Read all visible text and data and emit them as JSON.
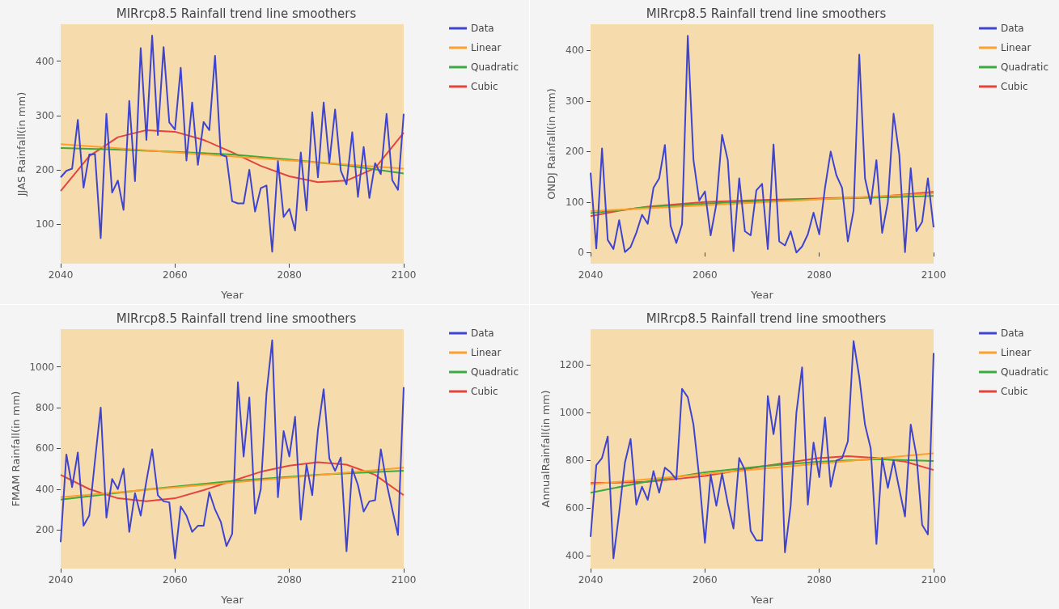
{
  "chart_data": [
    {
      "type": "line",
      "title": "MIRrcp8.5 Rainfall trend line smoothers",
      "xlabel": "Year",
      "ylabel": "JJAS Rainfall(in mm)",
      "legend": "right",
      "xlim": [
        2040,
        2100
      ],
      "ylim": [
        27,
        468
      ],
      "xticks": [
        2040,
        2060,
        2080,
        2100
      ],
      "yticks": [
        100,
        200,
        300,
        400
      ],
      "x": [
        2040,
        2041,
        2042,
        2043,
        2044,
        2045,
        2046,
        2047,
        2048,
        2049,
        2050,
        2051,
        2052,
        2053,
        2054,
        2055,
        2056,
        2057,
        2058,
        2059,
        2060,
        2061,
        2062,
        2063,
        2064,
        2065,
        2066,
        2067,
        2068,
        2069,
        2070,
        2071,
        2072,
        2073,
        2074,
        2075,
        2076,
        2077,
        2078,
        2079,
        2080,
        2081,
        2082,
        2083,
        2084,
        2085,
        2086,
        2087,
        2088,
        2089,
        2090,
        2091,
        2092,
        2093,
        2094,
        2095,
        2096,
        2097,
        2098,
        2099,
        2100
      ],
      "series": [
        {
          "name": "Data",
          "color": "#3f44d0",
          "values": [
            186,
            198,
            202,
            292,
            167,
            228,
            229,
            74,
            303,
            158,
            180,
            126,
            327,
            179,
            424,
            255,
            447,
            264,
            426,
            287,
            274,
            388,
            217,
            324,
            209,
            288,
            273,
            410,
            228,
            224,
            142,
            138,
            138,
            200,
            123,
            166,
            171,
            49,
            216,
            113,
            128,
            88,
            232,
            125,
            306,
            186,
            324,
            213,
            311,
            198,
            173,
            269,
            150,
            242,
            148,
            212,
            192,
            303,
            181,
            163,
            303
          ]
        },
        {
          "name": "Linear",
          "color": "#ff9f2a",
          "x": [
            2040,
            2100
          ],
          "values": [
            247,
            202
          ]
        },
        {
          "name": "Quadratic",
          "color": "#3caa3c",
          "x": [
            2040,
            2050,
            2060,
            2070,
            2080,
            2090,
            2100
          ],
          "values": [
            240,
            237,
            233,
            228,
            219,
            208,
            193
          ]
        },
        {
          "name": "Cubic",
          "color": "#e5443c",
          "x": [
            2040,
            2045,
            2050,
            2055,
            2060,
            2065,
            2070,
            2075,
            2080,
            2085,
            2090,
            2095,
            2100
          ],
          "values": [
            161,
            225,
            260,
            273,
            270,
            255,
            232,
            207,
            188,
            177,
            180,
            203,
            268
          ]
        }
      ]
    },
    {
      "type": "line",
      "title": "MIRrcp8.5 Rainfall trend line smoothers",
      "xlabel": "Year",
      "ylabel": "ONDJ Rainfall(in mm)",
      "legend": "right",
      "xlim": [
        2040,
        2100
      ],
      "ylim": [
        -22,
        452
      ],
      "xticks": [
        2040,
        2060,
        2080,
        2100
      ],
      "yticks": [
        0,
        100,
        200,
        300,
        400
      ],
      "x": [
        2040,
        2041,
        2042,
        2043,
        2044,
        2045,
        2046,
        2047,
        2048,
        2049,
        2050,
        2051,
        2052,
        2053,
        2054,
        2055,
        2056,
        2057,
        2058,
        2059,
        2060,
        2061,
        2062,
        2063,
        2064,
        2065,
        2066,
        2067,
        2068,
        2069,
        2070,
        2071,
        2072,
        2073,
        2074,
        2075,
        2076,
        2077,
        2078,
        2079,
        2080,
        2081,
        2082,
        2083,
        2084,
        2085,
        2086,
        2087,
        2088,
        2089,
        2090,
        2091,
        2092,
        2093,
        2094,
        2095,
        2096,
        2097,
        2098,
        2099,
        2100
      ],
      "series": [
        {
          "name": "Data",
          "color": "#3f44d0",
          "values": [
            158,
            8,
            206,
            25,
            7,
            64,
            1,
            11,
            39,
            75,
            57,
            128,
            147,
            213,
            53,
            19,
            56,
            429,
            183,
            103,
            121,
            34,
            96,
            233,
            183,
            3,
            147,
            42,
            34,
            123,
            136,
            7,
            214,
            22,
            14,
            42,
            0,
            12,
            36,
            79,
            36,
            128,
            200,
            153,
            128,
            22,
            83,
            392,
            147,
            96,
            183,
            39,
            100,
            275,
            194,
            1,
            167,
            42,
            61,
            147,
            50
          ]
        },
        {
          "name": "Linear",
          "color": "#ff9f2a",
          "x": [
            2040,
            2100
          ],
          "values": [
            82,
            117
          ]
        },
        {
          "name": "Quadratic",
          "color": "#3caa3c",
          "x": [
            2040,
            2050,
            2060,
            2070,
            2080,
            2090,
            2100
          ],
          "values": [
            78,
            90,
            97,
            102,
            106,
            109,
            112
          ]
        },
        {
          "name": "Cubic",
          "color": "#e5443c",
          "x": [
            2040,
            2045,
            2050,
            2060,
            2070,
            2080,
            2090,
            2100
          ],
          "values": [
            72,
            83,
            91,
            100,
            104,
            107,
            110,
            120
          ]
        }
      ]
    },
    {
      "type": "line",
      "title": "MIRrcp8.5 Rainfall trend line smoothers",
      "xlabel": "Year",
      "ylabel": "FMAM Rainfall(in mm)",
      "legend": "right",
      "xlim": [
        2040,
        2100
      ],
      "ylim": [
        10,
        1185
      ],
      "xticks": [
        2040,
        2060,
        2080,
        2100
      ],
      "yticks": [
        200,
        400,
        600,
        800,
        1000
      ],
      "x": [
        2040,
        2041,
        2042,
        2043,
        2044,
        2045,
        2046,
        2047,
        2048,
        2049,
        2050,
        2051,
        2052,
        2053,
        2054,
        2055,
        2056,
        2057,
        2058,
        2059,
        2060,
        2061,
        2062,
        2063,
        2064,
        2065,
        2066,
        2067,
        2068,
        2069,
        2070,
        2071,
        2072,
        2073,
        2074,
        2075,
        2076,
        2077,
        2078,
        2079,
        2080,
        2081,
        2082,
        2083,
        2084,
        2085,
        2086,
        2087,
        2088,
        2089,
        2090,
        2091,
        2092,
        2093,
        2094,
        2095,
        2096,
        2097,
        2098,
        2099,
        2100
      ],
      "series": [
        {
          "name": "Data",
          "color": "#3f44d0",
          "values": [
            140,
            570,
            410,
            580,
            220,
            270,
            540,
            800,
            260,
            450,
            400,
            500,
            190,
            380,
            270,
            440,
            595,
            370,
            340,
            335,
            60,
            315,
            270,
            190,
            220,
            220,
            385,
            300,
            240,
            120,
            180,
            925,
            560,
            850,
            280,
            400,
            870,
            1130,
            360,
            685,
            560,
            755,
            250,
            520,
            370,
            690,
            890,
            550,
            490,
            555,
            95,
            500,
            420,
            290,
            340,
            345,
            595,
            430,
            300,
            175,
            900
          ]
        },
        {
          "name": "Linear",
          "color": "#ff9f2a",
          "x": [
            2040,
            2100
          ],
          "values": [
            360,
            505
          ]
        },
        {
          "name": "Quadratic",
          "color": "#3caa3c",
          "x": [
            2040,
            2055,
            2070,
            2085,
            2100
          ],
          "values": [
            348,
            398,
            440,
            470,
            490
          ]
        },
        {
          "name": "Cubic",
          "color": "#e5443c",
          "x": [
            2040,
            2045,
            2050,
            2055,
            2060,
            2065,
            2070,
            2075,
            2080,
            2085,
            2090,
            2095,
            2100
          ],
          "values": [
            470,
            400,
            355,
            340,
            355,
            395,
            440,
            485,
            515,
            532,
            520,
            470,
            370
          ]
        }
      ]
    },
    {
      "type": "line",
      "title": "MIRrcp8.5 Rainfall trend line smoothers",
      "xlabel": "Year",
      "ylabel": "AnnualRainfall(in mm)",
      "legend": "right",
      "xlim": [
        2040,
        2100
      ],
      "ylim": [
        347,
        1350
      ],
      "xticks": [
        2040,
        2060,
        2080,
        2100
      ],
      "yticks": [
        400,
        600,
        800,
        1000,
        1200
      ],
      "x": [
        2040,
        2041,
        2042,
        2043,
        2044,
        2045,
        2046,
        2047,
        2048,
        2049,
        2050,
        2051,
        2052,
        2053,
        2054,
        2055,
        2056,
        2057,
        2058,
        2059,
        2060,
        2061,
        2062,
        2063,
        2064,
        2065,
        2066,
        2067,
        2068,
        2069,
        2070,
        2071,
        2072,
        2073,
        2074,
        2075,
        2076,
        2077,
        2078,
        2079,
        2080,
        2081,
        2082,
        2083,
        2084,
        2085,
        2086,
        2087,
        2088,
        2089,
        2090,
        2091,
        2092,
        2093,
        2094,
        2095,
        2096,
        2097,
        2098,
        2099,
        2100
      ],
      "series": [
        {
          "name": "Data",
          "color": "#3f44d0",
          "values": [
            480,
            780,
            810,
            900,
            390,
            580,
            790,
            890,
            615,
            690,
            635,
            755,
            665,
            770,
            750,
            720,
            1100,
            1065,
            950,
            730,
            455,
            740,
            610,
            745,
            620,
            515,
            810,
            760,
            505,
            465,
            465,
            1070,
            910,
            1070,
            415,
            610,
            1000,
            1190,
            615,
            875,
            730,
            980,
            690,
            800,
            810,
            880,
            1300,
            1150,
            950,
            850,
            450,
            810,
            685,
            800,
            680,
            565,
            950,
            820,
            530,
            490,
            1250
          ]
        },
        {
          "name": "Linear",
          "color": "#ff9f2a",
          "x": [
            2040,
            2100
          ],
          "values": [
            700,
            830
          ]
        },
        {
          "name": "Quadratic",
          "color": "#3caa3c",
          "x": [
            2040,
            2050,
            2060,
            2070,
            2080,
            2090,
            2100
          ],
          "values": [
            665,
            712,
            750,
            776,
            795,
            805,
            798
          ]
        },
        {
          "name": "Cubic",
          "color": "#e5443c",
          "x": [
            2040,
            2050,
            2060,
            2070,
            2080,
            2085,
            2090,
            2095,
            2100
          ],
          "values": [
            705,
            710,
            735,
            775,
            810,
            818,
            810,
            795,
            760
          ]
        }
      ]
    }
  ]
}
